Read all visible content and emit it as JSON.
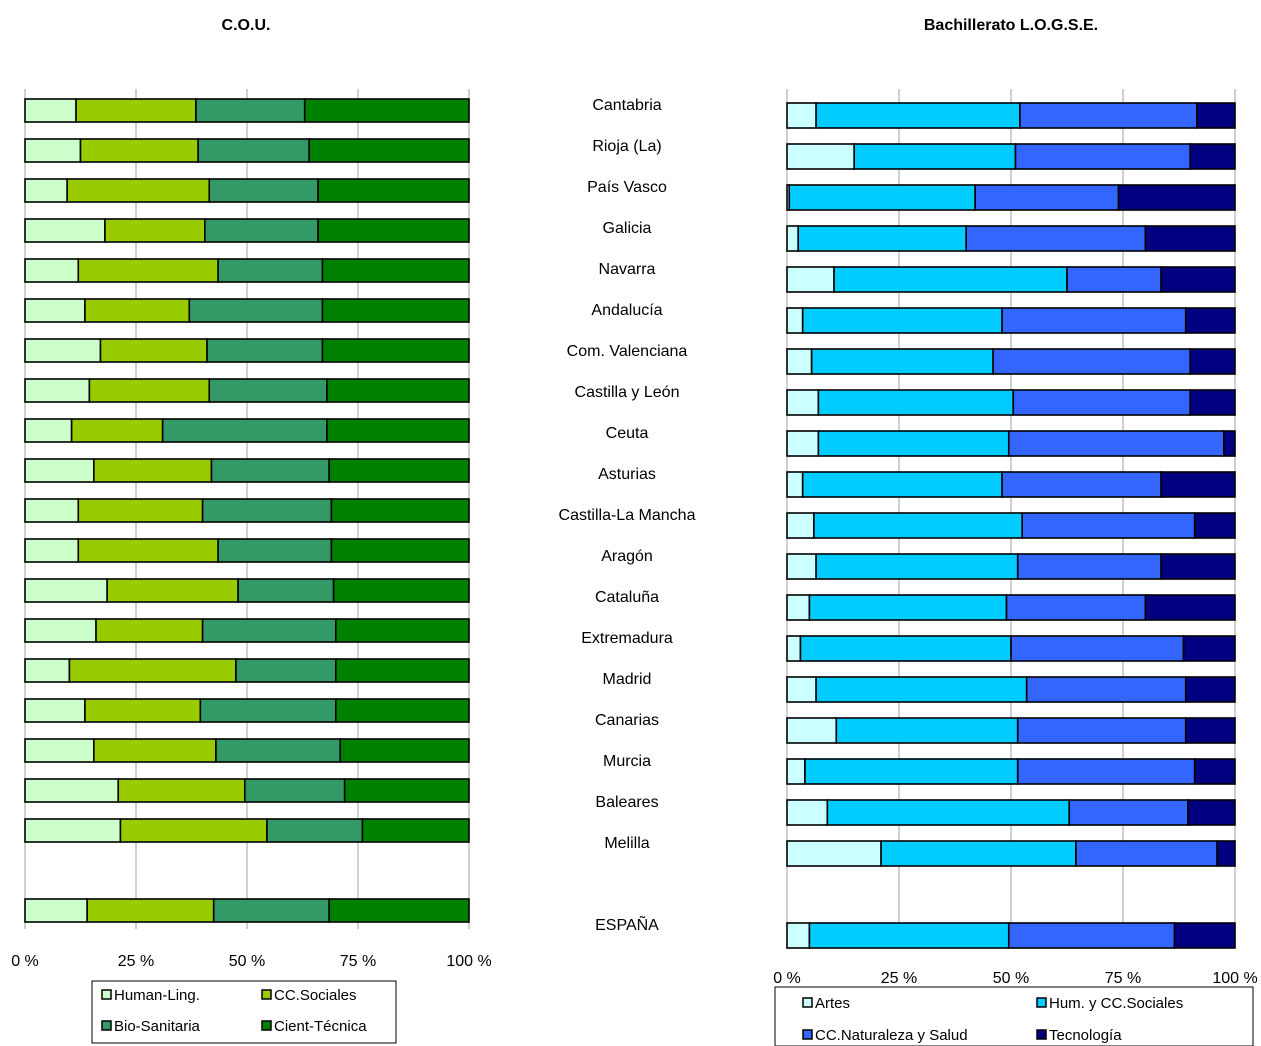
{
  "regions": [
    "Cantabria",
    "Rioja (La)",
    "País Vasco",
    "Galicia",
    "Navarra",
    "Andalucía",
    "Com. Valenciana",
    "Castilla y León",
    "Ceuta",
    "Asturias",
    "Castilla-La Mancha",
    "Aragón",
    "Cataluña",
    "Extremadura",
    "Madrid",
    "Canarias",
    "Murcia",
    "Baleares",
    "Melilla",
    "",
    "ESPAÑA"
  ],
  "chart_data": [
    {
      "type": "bar",
      "orientation": "horizontal",
      "stacked": "percent",
      "title": "C.O.U.",
      "xlim": [
        0,
        100
      ],
      "x_tick_labels": [
        "0 %",
        "25 %",
        "50 %",
        "75 %",
        "100 %"
      ],
      "grid": true,
      "legend_position": "bottom",
      "categories": [
        "Cantabria",
        "Rioja (La)",
        "País Vasco",
        "Galicia",
        "Navarra",
        "Andalucía",
        "Com. Valenciana",
        "Castilla y León",
        "Ceuta",
        "Asturias",
        "Castilla-La Mancha",
        "Aragón",
        "Cataluña",
        "Extremadura",
        "Madrid",
        "Canarias",
        "Murcia",
        "Baleares",
        "Melilla",
        "",
        "ESPAÑA"
      ],
      "series": [
        {
          "name": "Human-Ling.",
          "color": "#ccffcc",
          "values": [
            11.5,
            12.5,
            9.5,
            18,
            12,
            13.5,
            17,
            14.5,
            10.5,
            15.5,
            12,
            12,
            18.5,
            16,
            10,
            13.5,
            15.5,
            21,
            21.5,
            null,
            14
          ]
        },
        {
          "name": "CC.Sociales",
          "color": "#99cc00",
          "values": [
            27,
            26.5,
            32,
            22.5,
            31.5,
            23.5,
            24,
            27,
            20.5,
            26.5,
            28,
            31.5,
            29.5,
            24,
            37.5,
            26,
            27.5,
            28.5,
            33,
            null,
            28.5
          ]
        },
        {
          "name": "Bio-Sanitaria",
          "color": "#339966",
          "values": [
            24.5,
            25,
            24.5,
            25.5,
            23.5,
            30,
            26,
            26.5,
            37,
            26.5,
            29,
            25.5,
            21.5,
            30,
            22.5,
            30.5,
            28,
            22.5,
            21.5,
            null,
            26
          ]
        },
        {
          "name": "Cient-Técnica",
          "color": "#008000",
          "values": [
            37,
            36,
            34,
            34,
            33,
            33,
            33,
            32,
            32,
            31.5,
            31,
            31,
            30.5,
            30,
            30,
            30,
            29,
            28,
            24,
            null,
            31.5
          ]
        }
      ]
    },
    {
      "type": "bar",
      "orientation": "horizontal",
      "stacked": "percent",
      "title": "Bachillerato L.O.G.S.E.",
      "xlim": [
        0,
        100
      ],
      "x_tick_labels": [
        "0 %",
        "25 %",
        "50 %",
        "75 %",
        "100 %"
      ],
      "grid": true,
      "legend_position": "bottom",
      "categories": [
        "Cantabria",
        "Rioja (La)",
        "País Vasco",
        "Galicia",
        "Navarra",
        "Andalucía",
        "Com. Valenciana",
        "Castilla y León",
        "Ceuta",
        "Asturias",
        "Castilla-La Mancha",
        "Aragón",
        "Cataluña",
        "Extremadura",
        "Madrid",
        "Canarias",
        "Murcia",
        "Baleares",
        "Melilla",
        "",
        "ESPAÑA"
      ],
      "series": [
        {
          "name": "Artes",
          "color": "#ccffff",
          "values": [
            6.5,
            15,
            0.5,
            2.5,
            10.5,
            3.5,
            5.5,
            7,
            7,
            3.5,
            6,
            6.5,
            5,
            3,
            6.5,
            11,
            4,
            9,
            21,
            null,
            5
          ]
        },
        {
          "name": "Hum. y CC.Sociales",
          "color": "#00ccff",
          "values": [
            45.5,
            36,
            41.5,
            37.5,
            52,
            44.5,
            40.5,
            43.5,
            42.5,
            44.5,
            46.5,
            45,
            44,
            47,
            47,
            40.5,
            47.5,
            54,
            43.5,
            null,
            44.5
          ]
        },
        {
          "name": "CC.Naturaleza y Salud",
          "color": "#3366ff",
          "values": [
            39.5,
            39,
            32,
            40,
            21,
            41,
            44,
            39.5,
            48,
            35.5,
            38.5,
            32,
            31,
            38.5,
            35.5,
            37.5,
            39.5,
            26.5,
            31.5,
            null,
            37
          ]
        },
        {
          "name": "Tecnología",
          "color": "#000080",
          "values": [
            8.5,
            10,
            26,
            20,
            16.5,
            11,
            10,
            10,
            2.5,
            16.5,
            9,
            16.5,
            20,
            11.5,
            11,
            11,
            9,
            10.5,
            4,
            null,
            13.5
          ]
        }
      ]
    }
  ]
}
